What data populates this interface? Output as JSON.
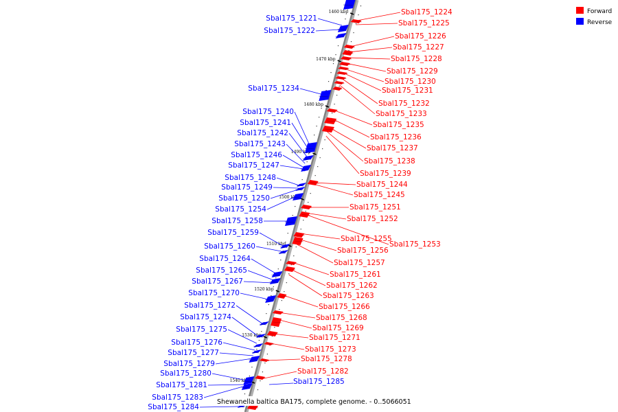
{
  "title": "Shewanella baltica BA175, complete genome. - 0..5066051",
  "legend": [
    {
      "label": "Forward",
      "color": "#ff0000"
    },
    {
      "label": "Reverse",
      "color": "#0000ff"
    }
  ],
  "colors": {
    "forward": "#ff0000",
    "reverse": "#0000ff",
    "backbone": "#808080"
  },
  "ticks": [
    "1460 kbp",
    "1470 kbp",
    "1480 kbp",
    "1490 kbp",
    "1500 kbp",
    "1510 kbp",
    "1520 kbp",
    "1530 kbp",
    "1540 kbp"
  ],
  "forward_genes": [
    "Sbal175_1224",
    "Sbal175_1225",
    "Sbal175_1226",
    "Sbal175_1227",
    "Sbal175_1228",
    "Sbal175_1229",
    "Sbal175_1230",
    "Sbal175_1231",
    "Sbal175_1232",
    "Sbal175_1233",
    "Sbal175_1235",
    "Sbal175_1236",
    "Sbal175_1237",
    "Sbal175_1238",
    "Sbal175_1239",
    "Sbal175_1244",
    "Sbal175_1245",
    "Sbal175_1251",
    "Sbal175_1252",
    "Sbal175_1253",
    "Sbal175_1255",
    "Sbal175_1256",
    "Sbal175_1257",
    "Sbal175_1261",
    "Sbal175_1262",
    "Sbal175_1263",
    "Sbal175_1266",
    "Sbal175_1268",
    "Sbal175_1269",
    "Sbal175_1271",
    "Sbal175_1273",
    "Sbal175_1278",
    "Sbal175_1282"
  ],
  "reverse_genes": [
    "Sbal175_1221",
    "Sbal175_1222",
    "Sbal175_1234",
    "Sbal175_1240",
    "Sbal175_1241",
    "Sbal175_1242",
    "Sbal175_1243",
    "Sbal175_1246",
    "Sbal175_1247",
    "Sbal175_1248",
    "Sbal175_1249",
    "Sbal175_1250",
    "Sbal175_1254",
    "Sbal175_1258",
    "Sbal175_1259",
    "Sbal175_1260",
    "Sbal175_1264",
    "Sbal175_1265",
    "Sbal175_1267",
    "Sbal175_1270",
    "Sbal175_1272",
    "Sbal175_1274",
    "Sbal175_1275",
    "Sbal175_1276",
    "Sbal175_1277",
    "Sbal175_1279",
    "Sbal175_1280",
    "Sbal175_1281",
    "Sbal175_1283",
    "Sbal175_1284",
    "Sbal175_1285"
  ]
}
